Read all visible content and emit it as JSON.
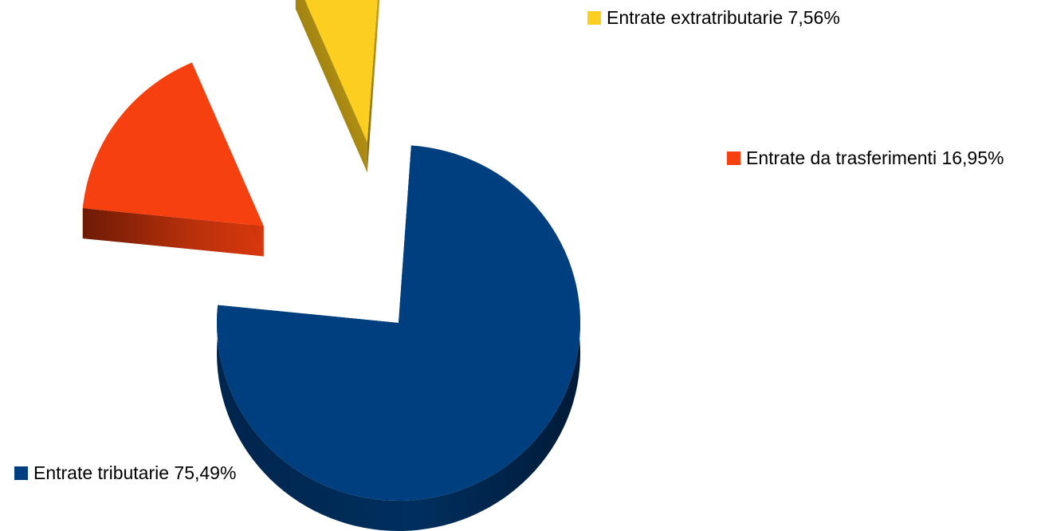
{
  "chart_data": {
    "type": "pie",
    "title": "",
    "categories": [
      "Entrate tributarie",
      "Entrate da trasferimenti",
      "Entrate extratributarie"
    ],
    "values": [
      75.49,
      16.95,
      7.56
    ],
    "labels": [
      "Entrate tributarie 75,49%",
      "Entrate da trasferimenti 16,95%",
      "Entrate extratributarie 7,56%"
    ],
    "colors": [
      "#003f7f",
      "#f7400f",
      "#fcce20"
    ],
    "exploded": [
      false,
      true,
      true
    ],
    "style": "3d",
    "legend": "labels next to slices"
  }
}
